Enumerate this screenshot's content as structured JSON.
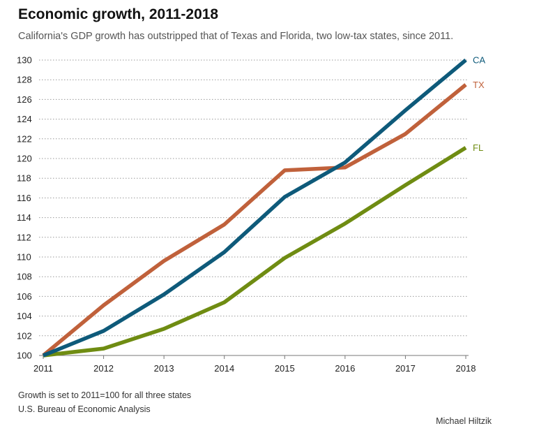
{
  "header": {
    "title": "Economic growth, 2011-2018",
    "subtitle": "California's GDP growth has outstripped that of Texas and Florida, two low-tax states, since 2011."
  },
  "footer": {
    "note": "Growth is set to 2011=100 for all three states",
    "source": "U.S. Bureau of Economic Analysis",
    "byline": "Michael Hiltzik"
  },
  "chart_data": {
    "type": "line",
    "title": "Economic growth, 2011-2018",
    "subtitle": "California's GDP growth has outstripped that of Texas and Florida, two low-tax states, since 2011.",
    "x": [
      2011,
      2012,
      2013,
      2014,
      2015,
      2016,
      2017,
      2018
    ],
    "xticks": [
      "2011",
      "2012",
      "2013",
      "2014",
      "2015",
      "2016",
      "2017",
      "2018"
    ],
    "yticks": [
      100,
      102,
      104,
      106,
      108,
      110,
      112,
      114,
      116,
      118,
      120,
      122,
      124,
      126,
      128,
      130
    ],
    "ylim": [
      100,
      130
    ],
    "grid": "horizontal dotted",
    "legend": "direct labels at line ends",
    "series": [
      {
        "name": "CA",
        "color": "#0e5a7a",
        "values": [
          100,
          102.5,
          106.2,
          110.5,
          116.1,
          119.6,
          124.9,
          130.0
        ]
      },
      {
        "name": "TX",
        "color": "#c0613b",
        "values": [
          100,
          105.1,
          109.6,
          113.3,
          118.8,
          119.1,
          122.5,
          127.5
        ]
      },
      {
        "name": "FL",
        "color": "#6f8c12",
        "values": [
          100,
          100.7,
          102.7,
          105.4,
          109.9,
          113.4,
          117.3,
          121.1
        ]
      }
    ]
  }
}
